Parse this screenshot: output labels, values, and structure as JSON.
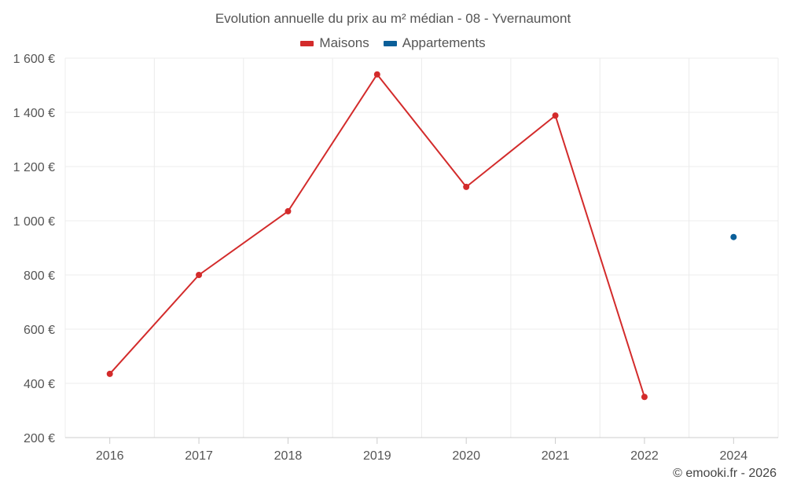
{
  "chart_data": {
    "type": "line",
    "title": "Evolution annuelle du prix au m² médian - 08 - Yvernaumont",
    "categories": [
      "2016",
      "2017",
      "2018",
      "2019",
      "2020",
      "2021",
      "2022",
      "2024"
    ],
    "series": [
      {
        "name": "Maisons",
        "color": "#d32b2b",
        "values": [
          435,
          800,
          1035,
          1540,
          1125,
          1388,
          350,
          null
        ]
      },
      {
        "name": "Appartements",
        "color": "#0b5f99",
        "values": [
          null,
          null,
          null,
          null,
          null,
          null,
          null,
          940
        ]
      }
    ],
    "ylim": [
      200,
      1600
    ],
    "yticks": [
      200,
      400,
      600,
      800,
      1000,
      1200,
      1400,
      1600
    ],
    "ytick_labels": [
      "200 €",
      "400 €",
      "600 €",
      "800 €",
      "1 000 €",
      "1 200 €",
      "1 400 €",
      "1 600 €"
    ],
    "grid": true,
    "legend_position": "top-center"
  },
  "credit": "© emooki.fr - 2026"
}
